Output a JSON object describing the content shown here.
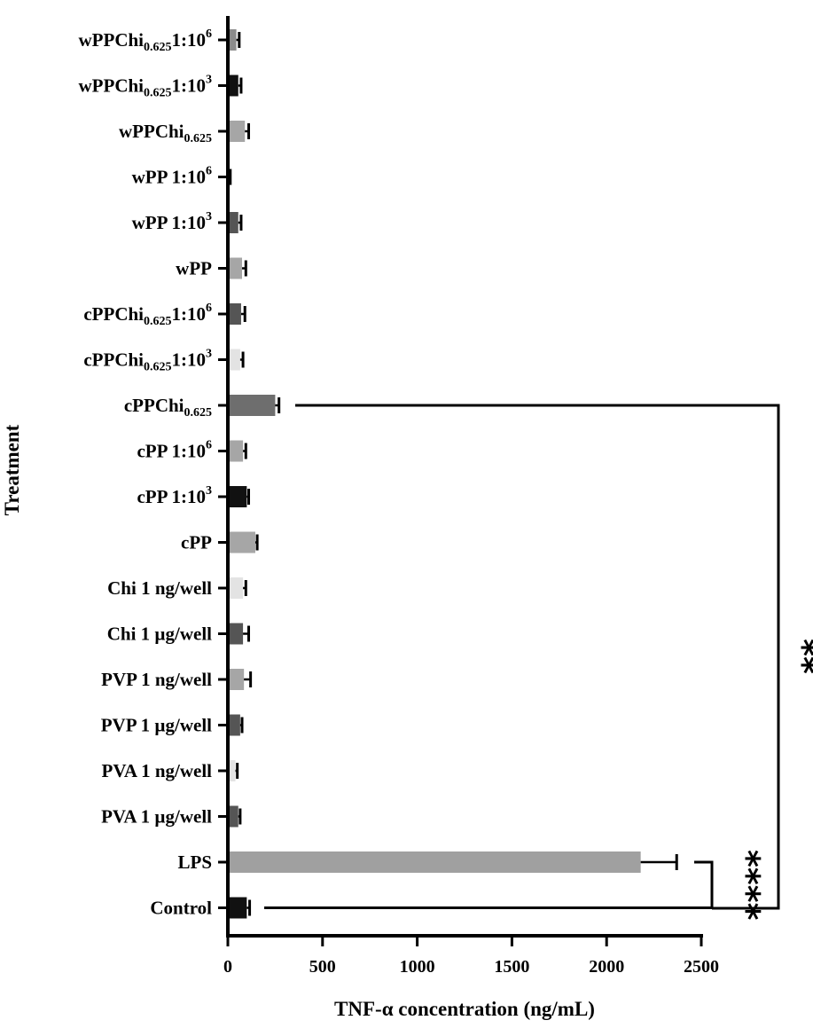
{
  "chart_data": {
    "type": "bar",
    "orientation": "horizontal",
    "title": "",
    "xlabel": "TNF-α concentration (ng/mL)",
    "ylabel": "Treatment",
    "xlim": [
      0,
      2500
    ],
    "xticks": [
      0,
      500,
      1000,
      1500,
      2000,
      2500
    ],
    "grid": false,
    "categories": [
      {
        "id": "wppchi-1e6",
        "base": "wPPChi",
        "sub": "0.625",
        "mid": "1:10",
        "sup": "6"
      },
      {
        "id": "wppchi-1e3",
        "base": "wPPChi",
        "sub": "0.625",
        "mid": "1:10",
        "sup": "3"
      },
      {
        "id": "wppchi",
        "base": "wPPChi",
        "sub": "0.625",
        "mid": "",
        "sup": ""
      },
      {
        "id": "wpp-1e6",
        "base": "wPP 1:10",
        "sub": "",
        "mid": "",
        "sup": "6"
      },
      {
        "id": "wpp-1e3",
        "base": "wPP 1:10",
        "sub": "",
        "mid": "",
        "sup": "3"
      },
      {
        "id": "wpp",
        "base": "wPP",
        "sub": "",
        "mid": "",
        "sup": ""
      },
      {
        "id": "cppchi-1e6",
        "base": "cPPChi",
        "sub": "0.625",
        "mid": "1:10",
        "sup": "6"
      },
      {
        "id": "cppchi-1e3",
        "base": "cPPChi",
        "sub": "0.625",
        "mid": "1:10",
        "sup": "3"
      },
      {
        "id": "cppchi",
        "base": "cPPChi",
        "sub": "0.625",
        "mid": "",
        "sup": ""
      },
      {
        "id": "cpp-1e6",
        "base": "cPP 1:10",
        "sub": "",
        "mid": "",
        "sup": "6"
      },
      {
        "id": "cpp-1e3",
        "base": "cPP 1:10",
        "sub": "",
        "mid": "",
        "sup": "3"
      },
      {
        "id": "cpp",
        "base": "cPP",
        "sub": "",
        "mid": "",
        "sup": ""
      },
      {
        "id": "chi-ng",
        "base": "Chi 1 ng/well",
        "sub": "",
        "mid": "",
        "sup": ""
      },
      {
        "id": "chi-ug",
        "base": "Chi 1 µg/well",
        "sub": "",
        "mid": "",
        "sup": ""
      },
      {
        "id": "pvp-ng",
        "base": "PVP 1 ng/well",
        "sub": "",
        "mid": "",
        "sup": ""
      },
      {
        "id": "pvp-ug",
        "base": "PVP 1 µg/well",
        "sub": "",
        "mid": "",
        "sup": ""
      },
      {
        "id": "pva-ng",
        "base": "PVA 1 ng/well",
        "sub": "",
        "mid": "",
        "sup": ""
      },
      {
        "id": "pva-ug",
        "base": "PVA 1 µg/well",
        "sub": "",
        "mid": "",
        "sup": ""
      },
      {
        "id": "lps",
        "base": "LPS",
        "sub": "",
        "mid": "",
        "sup": ""
      },
      {
        "id": "control",
        "base": "Control",
        "sub": "",
        "mid": "",
        "sup": ""
      }
    ],
    "values": [
      45,
      55,
      90,
      8,
      55,
      75,
      70,
      65,
      250,
      80,
      100,
      145,
      80,
      80,
      85,
      65,
      40,
      55,
      2180,
      100
    ],
    "errors": [
      15,
      15,
      20,
      5,
      15,
      20,
      20,
      15,
      20,
      15,
      10,
      10,
      15,
      30,
      35,
      10,
      10,
      10,
      190,
      15
    ],
    "colors": [
      "#8c8c8c",
      "#111111",
      "#a6a6a6",
      "#111111",
      "#555555",
      "#a6a6a6",
      "#555555",
      "#e3e3e3",
      "#6e6e6e",
      "#a6a6a6",
      "#111111",
      "#a6a6a6",
      "#e3e3e3",
      "#555555",
      "#a6a6a6",
      "#555555",
      "#e3e3e3",
      "#555555",
      "#a0a0a0",
      "#111111"
    ],
    "annotations": [
      {
        "id": "sig-lps-control",
        "text": "****",
        "from": "lps",
        "to": "control"
      },
      {
        "id": "sig-cppchi-control",
        "text": "**",
        "from": "cppchi",
        "to": "control"
      }
    ]
  }
}
